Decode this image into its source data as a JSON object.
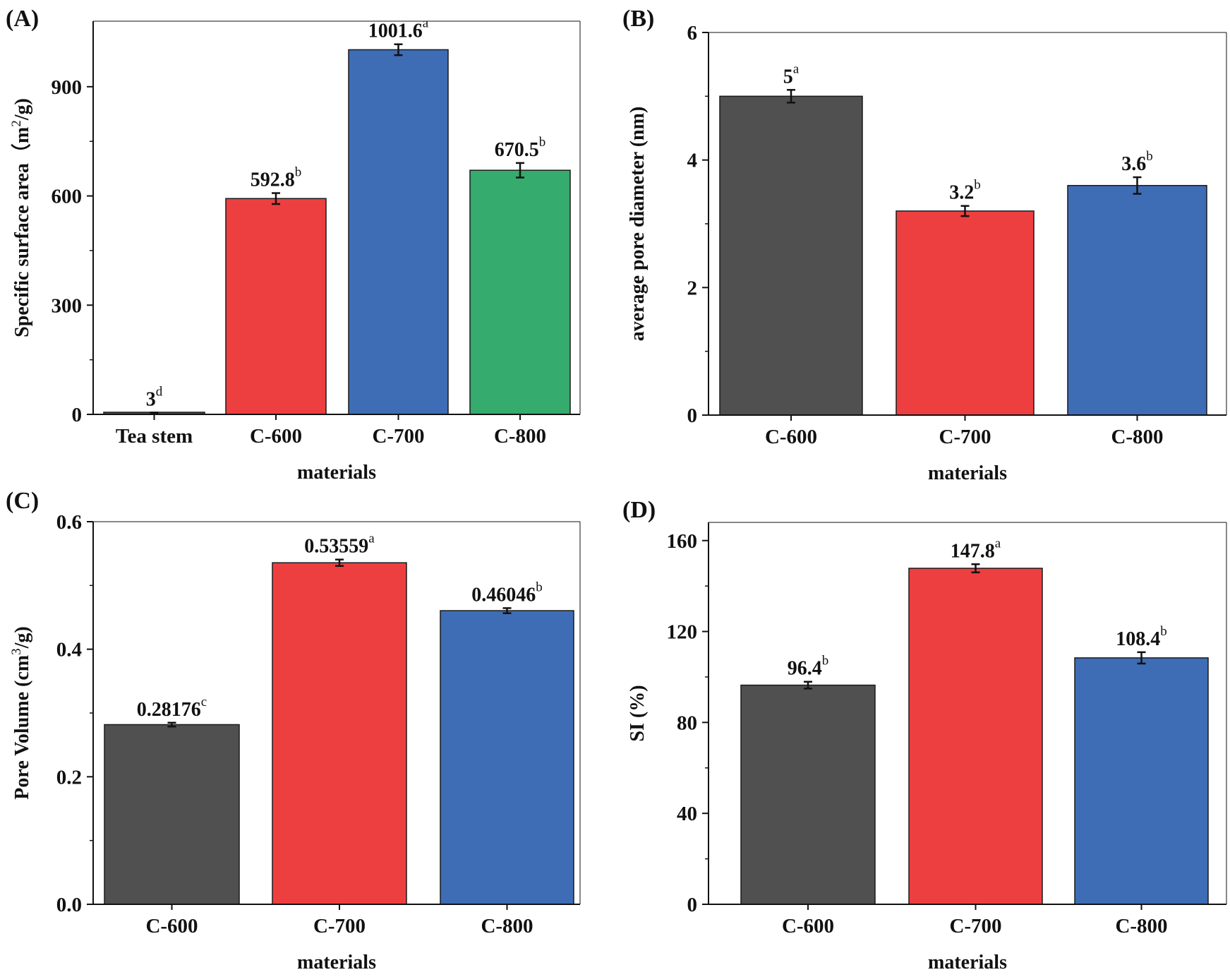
{
  "figure": {
    "background": "#ffffff",
    "colors": {
      "gray": "#505050",
      "red": "#ee3f40",
      "blue": "#3e6db5",
      "green": "#35ab6d"
    }
  },
  "chart_data": [
    {
      "panel": "(A)",
      "type": "bar",
      "categories": [
        "Tea stem",
        "C-600",
        "C-700",
        "C-800"
      ],
      "values": [
        3,
        592.8,
        1001.6,
        670.5
      ],
      "errors": [
        2,
        15,
        15,
        20
      ],
      "value_labels": [
        "3",
        "592.8",
        "1001.6",
        "670.5"
      ],
      "letters": [
        "d",
        "b",
        "a",
        "b"
      ],
      "colors": [
        "#505050",
        "#ee3f40",
        "#3e6db5",
        "#35ab6d"
      ],
      "xlabel": "materials",
      "ylabel_main": "Specific surface area（m",
      "ylabel_sup": "2",
      "ylabel_tail": "/g)",
      "ylim": [
        0,
        1080
      ],
      "yticks": [
        0,
        300,
        600,
        900
      ],
      "ytick_labels": [
        "0",
        "300",
        "600",
        "900"
      ]
    },
    {
      "panel": "(B)",
      "type": "bar",
      "categories": [
        "C-600",
        "C-700",
        "C-800"
      ],
      "values": [
        5,
        3.2,
        3.6
      ],
      "errors": [
        0.1,
        0.08,
        0.13
      ],
      "value_labels": [
        "5",
        "3.2",
        "3.6"
      ],
      "letters": [
        "a",
        "b",
        "b"
      ],
      "colors": [
        "#505050",
        "#ee3f40",
        "#3e6db5"
      ],
      "xlabel": "materials",
      "ylabel_main": "average pore diameter (nm)",
      "ylabel_sup": "",
      "ylabel_tail": "",
      "ylim": [
        0,
        6
      ],
      "yticks": [
        0,
        2,
        4,
        6
      ],
      "ytick_labels": [
        "0",
        "2",
        "4",
        "6"
      ]
    },
    {
      "panel": "(C)",
      "type": "bar",
      "categories": [
        "C-600",
        "C-700",
        "C-800"
      ],
      "values": [
        0.28176,
        0.53559,
        0.46046
      ],
      "errors": [
        0.003,
        0.005,
        0.004
      ],
      "value_labels": [
        "0.28176",
        "0.53559",
        "0.46046"
      ],
      "letters": [
        "c",
        "a",
        "b"
      ],
      "colors": [
        "#505050",
        "#ee3f40",
        "#3e6db5"
      ],
      "xlabel": "materials",
      "ylabel_main": "Pore Volume (cm",
      "ylabel_sup": "3",
      "ylabel_tail": "/g)",
      "ylim": [
        0,
        0.6
      ],
      "yticks": [
        0,
        0.2,
        0.4,
        0.6
      ],
      "ytick_labels": [
        "0.0",
        "0.2",
        "0.4",
        "0.6"
      ]
    },
    {
      "panel": "(D)",
      "type": "bar",
      "categories": [
        "C-600",
        "C-700",
        "C-800"
      ],
      "values": [
        96.4,
        147.8,
        108.4
      ],
      "errors": [
        1.5,
        1.8,
        2.5
      ],
      "value_labels": [
        "96.4",
        "147.8",
        "108.4"
      ],
      "letters": [
        "b",
        "a",
        "b"
      ],
      "colors": [
        "#505050",
        "#ee3f40",
        "#3e6db5"
      ],
      "xlabel": "materials",
      "ylabel_main": "SI (%)",
      "ylabel_sup": "",
      "ylabel_tail": "",
      "ylim": [
        0,
        168
      ],
      "yticks": [
        0,
        40,
        80,
        120,
        160
      ],
      "ytick_labels": [
        "0",
        "40",
        "80",
        "120",
        "160"
      ]
    }
  ]
}
